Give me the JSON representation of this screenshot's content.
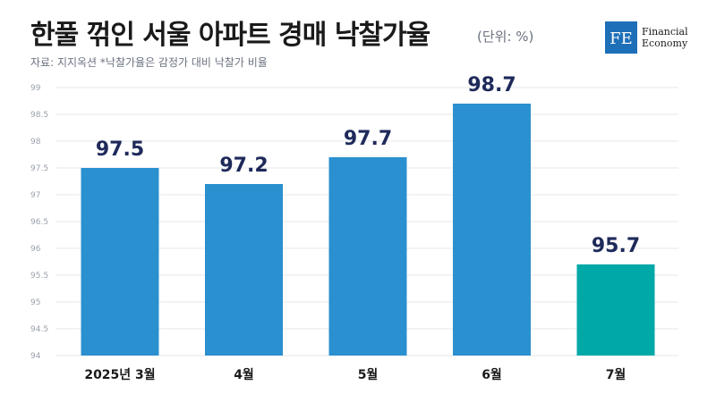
{
  "header": {
    "title": "한풀 꺾인 서울 아파트 경매 낙찰가율",
    "unit": "(단위: %)",
    "source": "자료: 지지옥션  *낙찰가율은 감정가 대비 낙찰가 비율"
  },
  "logo": {
    "monogram": "FE",
    "line1": "Financial",
    "line2": "Economy"
  },
  "colors": {
    "bar": "#2a90cf",
    "highlight": "#00a8a8",
    "brand": "#1d6fb8"
  },
  "chart_data": {
    "type": "bar",
    "categories": [
      "2025년 3월",
      "4월",
      "5월",
      "6월",
      "7월"
    ],
    "values": [
      97.5,
      97.2,
      97.7,
      98.7,
      95.7
    ],
    "labels": [
      "97.5",
      "97.2",
      "97.7",
      "98.7",
      "95.7"
    ],
    "highlight_index": 4,
    "ylim": [
      94,
      99
    ],
    "yticks": [
      "94",
      "94.5",
      "95",
      "95.5",
      "96",
      "96.5",
      "97",
      "97.5",
      "98",
      "98.5",
      "99"
    ],
    "ytick_values": [
      94,
      94.5,
      95,
      95.5,
      96,
      96.5,
      97,
      97.5,
      98,
      98.5,
      99
    ],
    "grid": true,
    "title": "",
    "xlabel": "",
    "ylabel": ""
  }
}
